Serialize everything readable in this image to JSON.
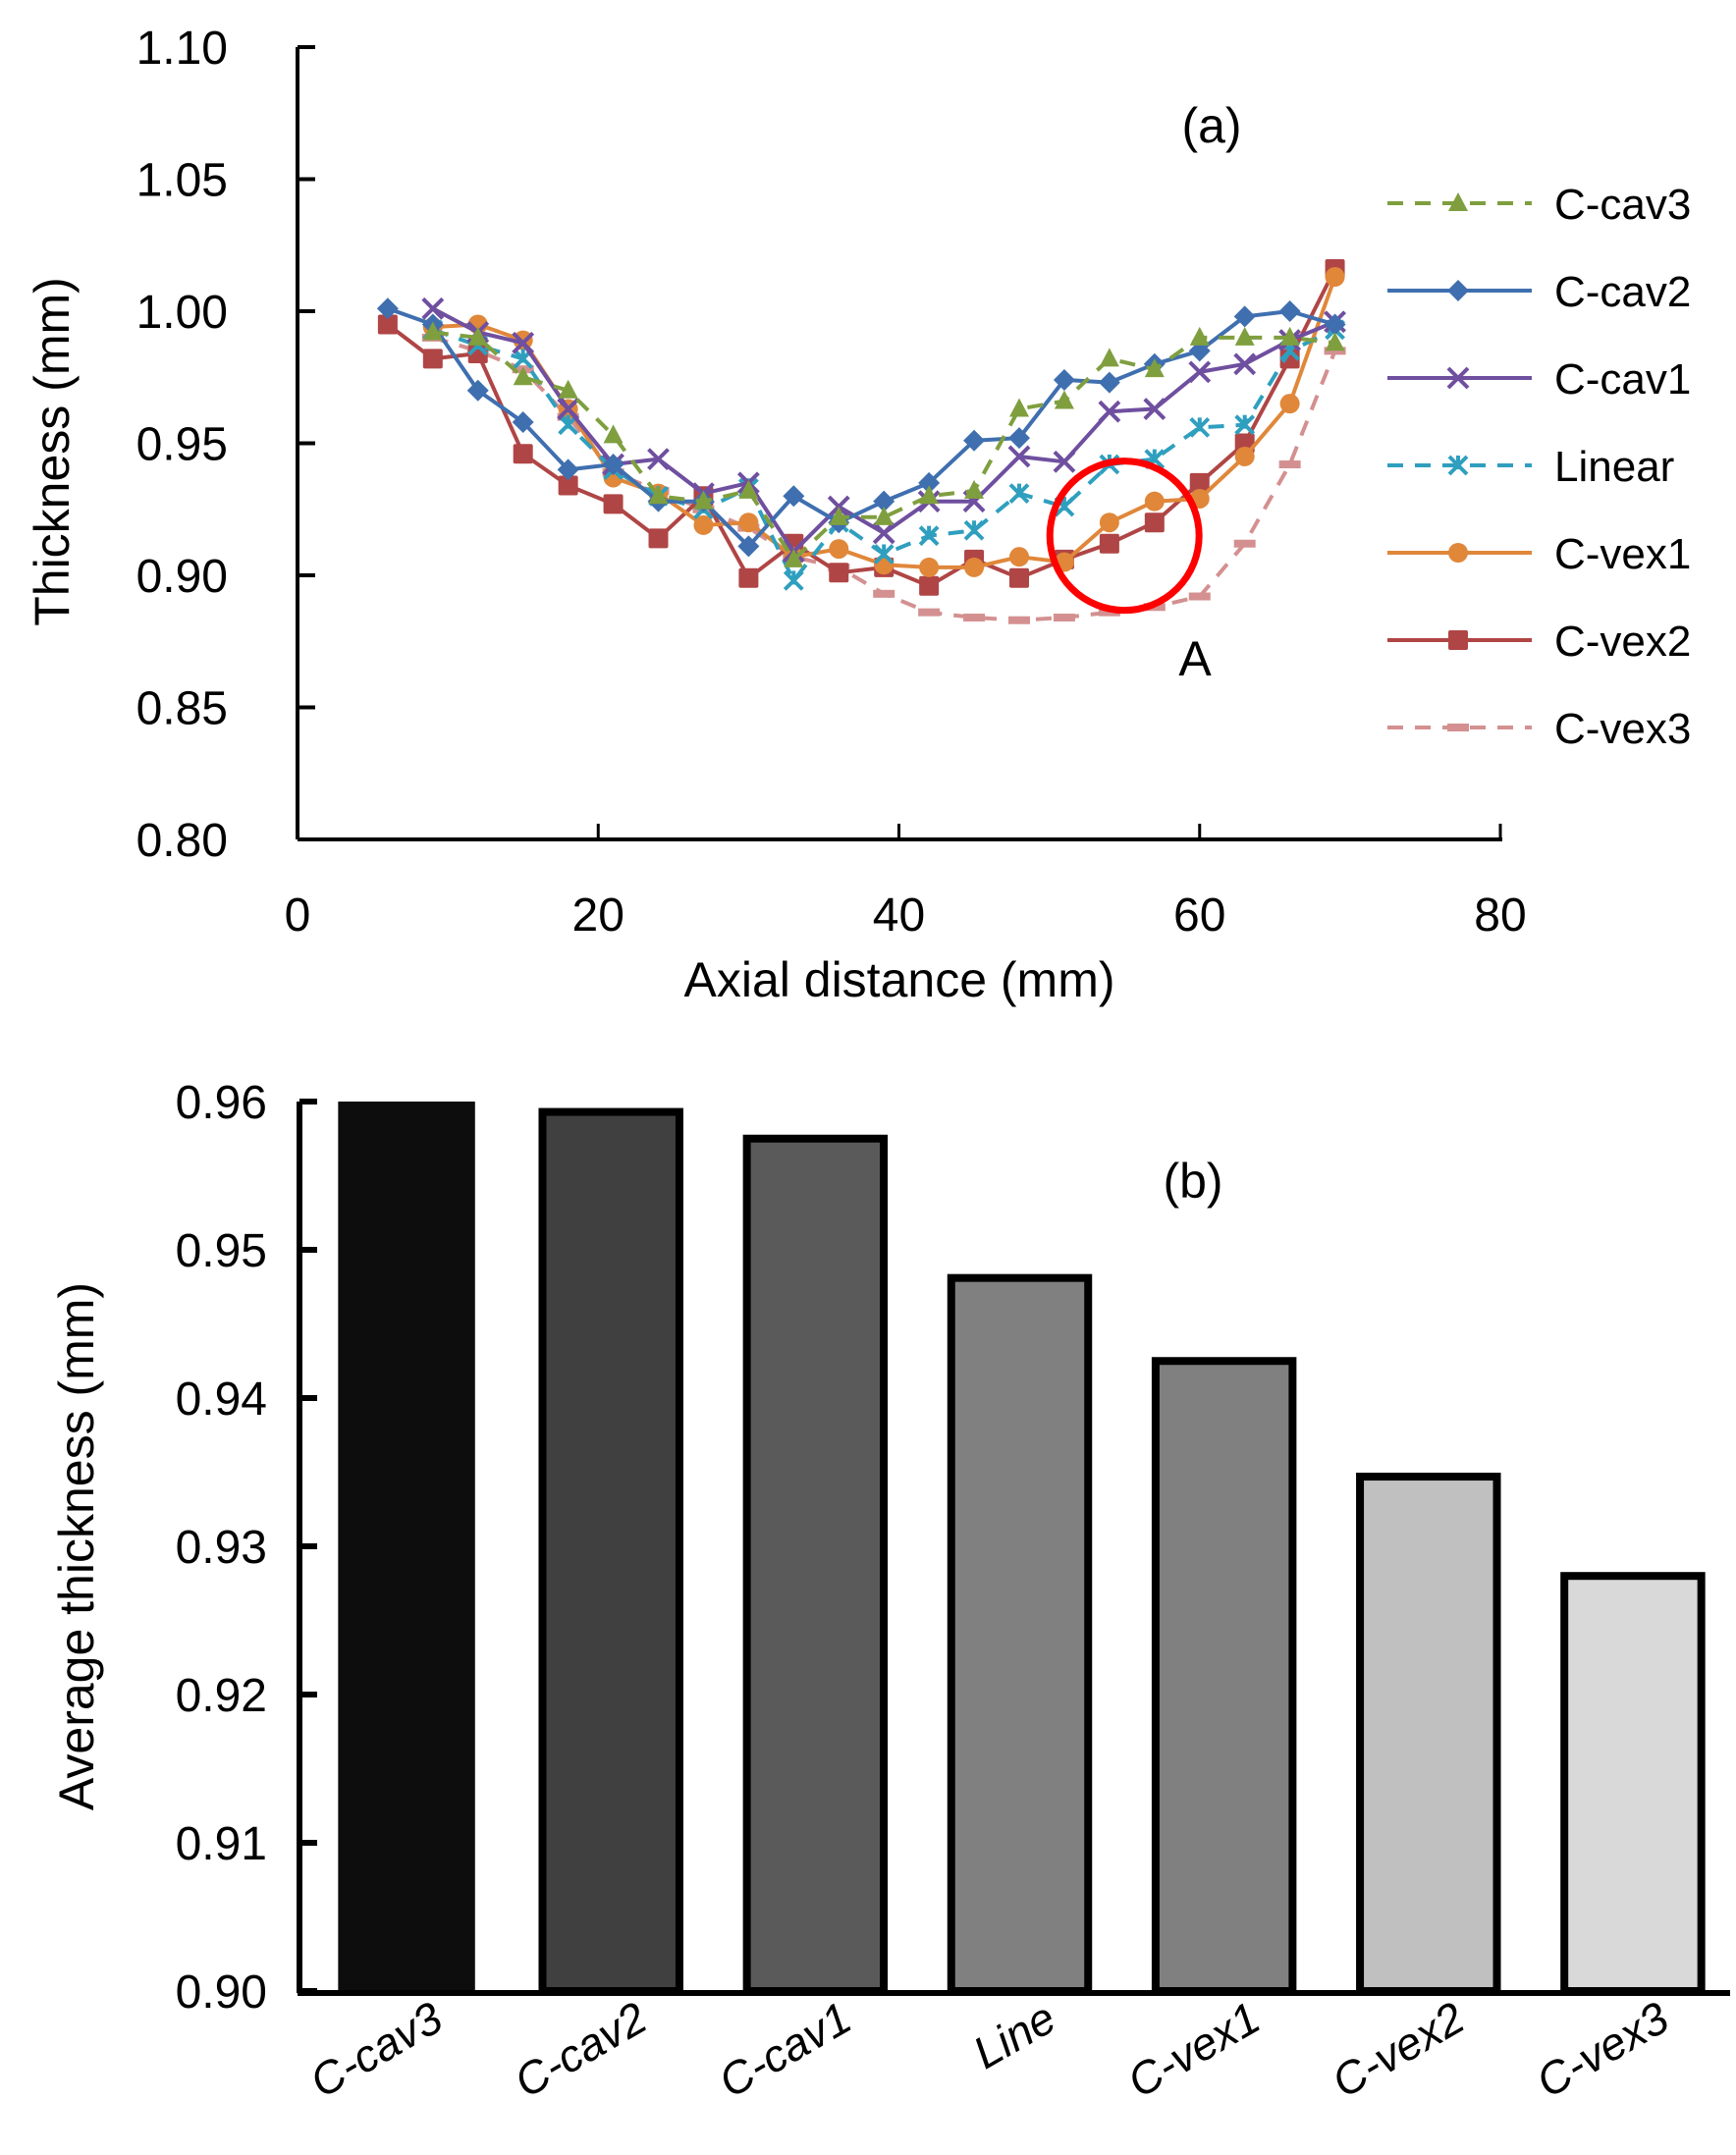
{
  "chart_data": [
    {
      "type": "line",
      "panel_label": "(a)",
      "annotation": "A",
      "annotation_circle_center_x": 55,
      "annotation_circle_center_y": 0.915,
      "xlabel": "Axial distance (mm)",
      "ylabel": "Thickness (mm)",
      "xlim": [
        0,
        80
      ],
      "ylim": [
        0.8,
        1.1
      ],
      "xticks": [
        0,
        20,
        40,
        60,
        80
      ],
      "xtick_labels": [
        "0",
        "20",
        "40",
        "60",
        "80"
      ],
      "yticks": [
        0.8,
        0.85,
        0.9,
        0.95,
        1.0,
        1.05,
        1.1
      ],
      "ytick_labels": [
        "0.80",
        "0.85",
        "0.90",
        "0.95",
        "1.00",
        "1.05",
        "1.10"
      ],
      "grid": false,
      "legend_position": "right",
      "series": [
        {
          "name": "C-cav3",
          "color": "#7f9f3f",
          "dash": true,
          "marker": "triangle",
          "x": [
            9,
            12,
            15,
            18,
            21,
            24,
            27,
            30,
            33,
            36,
            39,
            42,
            45,
            48,
            51,
            54,
            57,
            60,
            63,
            66,
            69
          ],
          "y": [
            0.992,
            0.99,
            0.975,
            0.97,
            0.953,
            0.93,
            0.928,
            0.932,
            0.906,
            0.922,
            0.922,
            0.93,
            0.932,
            0.963,
            0.966,
            0.982,
            0.978,
            0.99,
            0.99,
            0.99,
            0.988
          ]
        },
        {
          "name": "C-cav2",
          "color": "#3f6faf",
          "dash": false,
          "marker": "diamond",
          "x": [
            6,
            9,
            12,
            15,
            18,
            21,
            24,
            27,
            30,
            33,
            36,
            39,
            42,
            45,
            48,
            51,
            54,
            57,
            60,
            63,
            66,
            69
          ],
          "y": [
            1.001,
            0.995,
            0.97,
            0.958,
            0.94,
            0.942,
            0.928,
            0.928,
            0.911,
            0.93,
            0.92,
            0.928,
            0.935,
            0.951,
            0.952,
            0.974,
            0.973,
            0.98,
            0.985,
            0.998,
            1.0,
            0.995
          ]
        },
        {
          "name": "C-cav1",
          "color": "#6f4f9f",
          "dash": false,
          "marker": "x",
          "x": [
            9,
            12,
            15,
            18,
            21,
            24,
            27,
            30,
            33,
            36,
            39,
            42,
            45,
            48,
            51,
            54,
            57,
            60,
            63,
            66,
            69
          ],
          "y": [
            1.001,
            0.992,
            0.988,
            0.963,
            0.942,
            0.944,
            0.931,
            0.935,
            0.909,
            0.926,
            0.916,
            0.928,
            0.928,
            0.945,
            0.943,
            0.962,
            0.963,
            0.977,
            0.98,
            0.989,
            0.996
          ]
        },
        {
          "name": "Linear",
          "color": "#2f9fbf",
          "dash": true,
          "marker": "star",
          "x": [
            9,
            12,
            15,
            18,
            21,
            24,
            27,
            30,
            33,
            36,
            39,
            42,
            45,
            48,
            51,
            54,
            57,
            60,
            63,
            66,
            69
          ],
          "y": [
            0.993,
            0.987,
            0.982,
            0.957,
            0.94,
            0.93,
            0.925,
            0.933,
            0.898,
            0.92,
            0.908,
            0.915,
            0.917,
            0.931,
            0.926,
            0.942,
            0.944,
            0.956,
            0.957,
            0.985,
            0.993
          ]
        },
        {
          "name": "C-vex1",
          "color": "#e0873a",
          "dash": false,
          "marker": "circle",
          "x": [
            9,
            12,
            15,
            18,
            21,
            24,
            27,
            30,
            33,
            36,
            39,
            42,
            45,
            48,
            51,
            54,
            57,
            60,
            63,
            66,
            69
          ],
          "y": [
            0.994,
            0.995,
            0.989,
            0.963,
            0.937,
            0.931,
            0.919,
            0.92,
            0.907,
            0.91,
            0.904,
            0.903,
            0.903,
            0.907,
            0.905,
            0.92,
            0.928,
            0.929,
            0.945,
            0.965,
            1.013
          ]
        },
        {
          "name": "C-vex2",
          "color": "#b04545",
          "dash": false,
          "marker": "square",
          "x": [
            6,
            9,
            12,
            15,
            18,
            21,
            24,
            27,
            30,
            33,
            36,
            39,
            42,
            45,
            48,
            51,
            54,
            57,
            60,
            63,
            66,
            69
          ],
          "y": [
            0.995,
            0.982,
            0.984,
            0.946,
            0.934,
            0.927,
            0.914,
            0.93,
            0.899,
            0.912,
            0.901,
            0.903,
            0.896,
            0.906,
            0.899,
            0.906,
            0.912,
            0.92,
            0.935,
            0.95,
            0.982,
            1.016
          ]
        },
        {
          "name": "C-vex3",
          "color": "#d49090",
          "dash": true,
          "marker": "dash",
          "x": [
            9,
            12,
            15,
            18,
            21,
            24,
            27,
            30,
            33,
            36,
            39,
            42,
            45,
            48,
            51,
            54,
            57,
            60,
            63,
            66,
            69
          ],
          "y": [
            0.99,
            0.985,
            0.978,
            0.96,
            0.939,
            0.932,
            0.925,
            0.918,
            0.907,
            0.903,
            0.893,
            0.886,
            0.884,
            0.883,
            0.884,
            0.886,
            0.888,
            0.892,
            0.912,
            0.942,
            0.985
          ]
        }
      ]
    },
    {
      "type": "bar",
      "panel_label": "(b)",
      "xlabel": "",
      "ylabel": "Average thickness (mm)",
      "ylim": [
        0.9,
        0.96
      ],
      "yticks": [
        0.9,
        0.91,
        0.92,
        0.93,
        0.94,
        0.95,
        0.96
      ],
      "ytick_labels": [
        "0.90",
        "0.91",
        "0.92",
        "0.93",
        "0.94",
        "0.95",
        "0.96"
      ],
      "grid": false,
      "categories": [
        "C-cav3",
        "C-cav2",
        "C-cav1",
        "Line",
        "C-vex1",
        "C-vex2",
        "C-vex3"
      ],
      "values": [
        0.96,
        0.9593,
        0.9575,
        0.9481,
        0.9425,
        0.9347,
        0.928
      ],
      "colors": [
        "#0d0d0d",
        "#404040",
        "#5a5a5a",
        "#808080",
        "#808080",
        "#c0c0c0",
        "#d9d9d9"
      ]
    }
  ]
}
